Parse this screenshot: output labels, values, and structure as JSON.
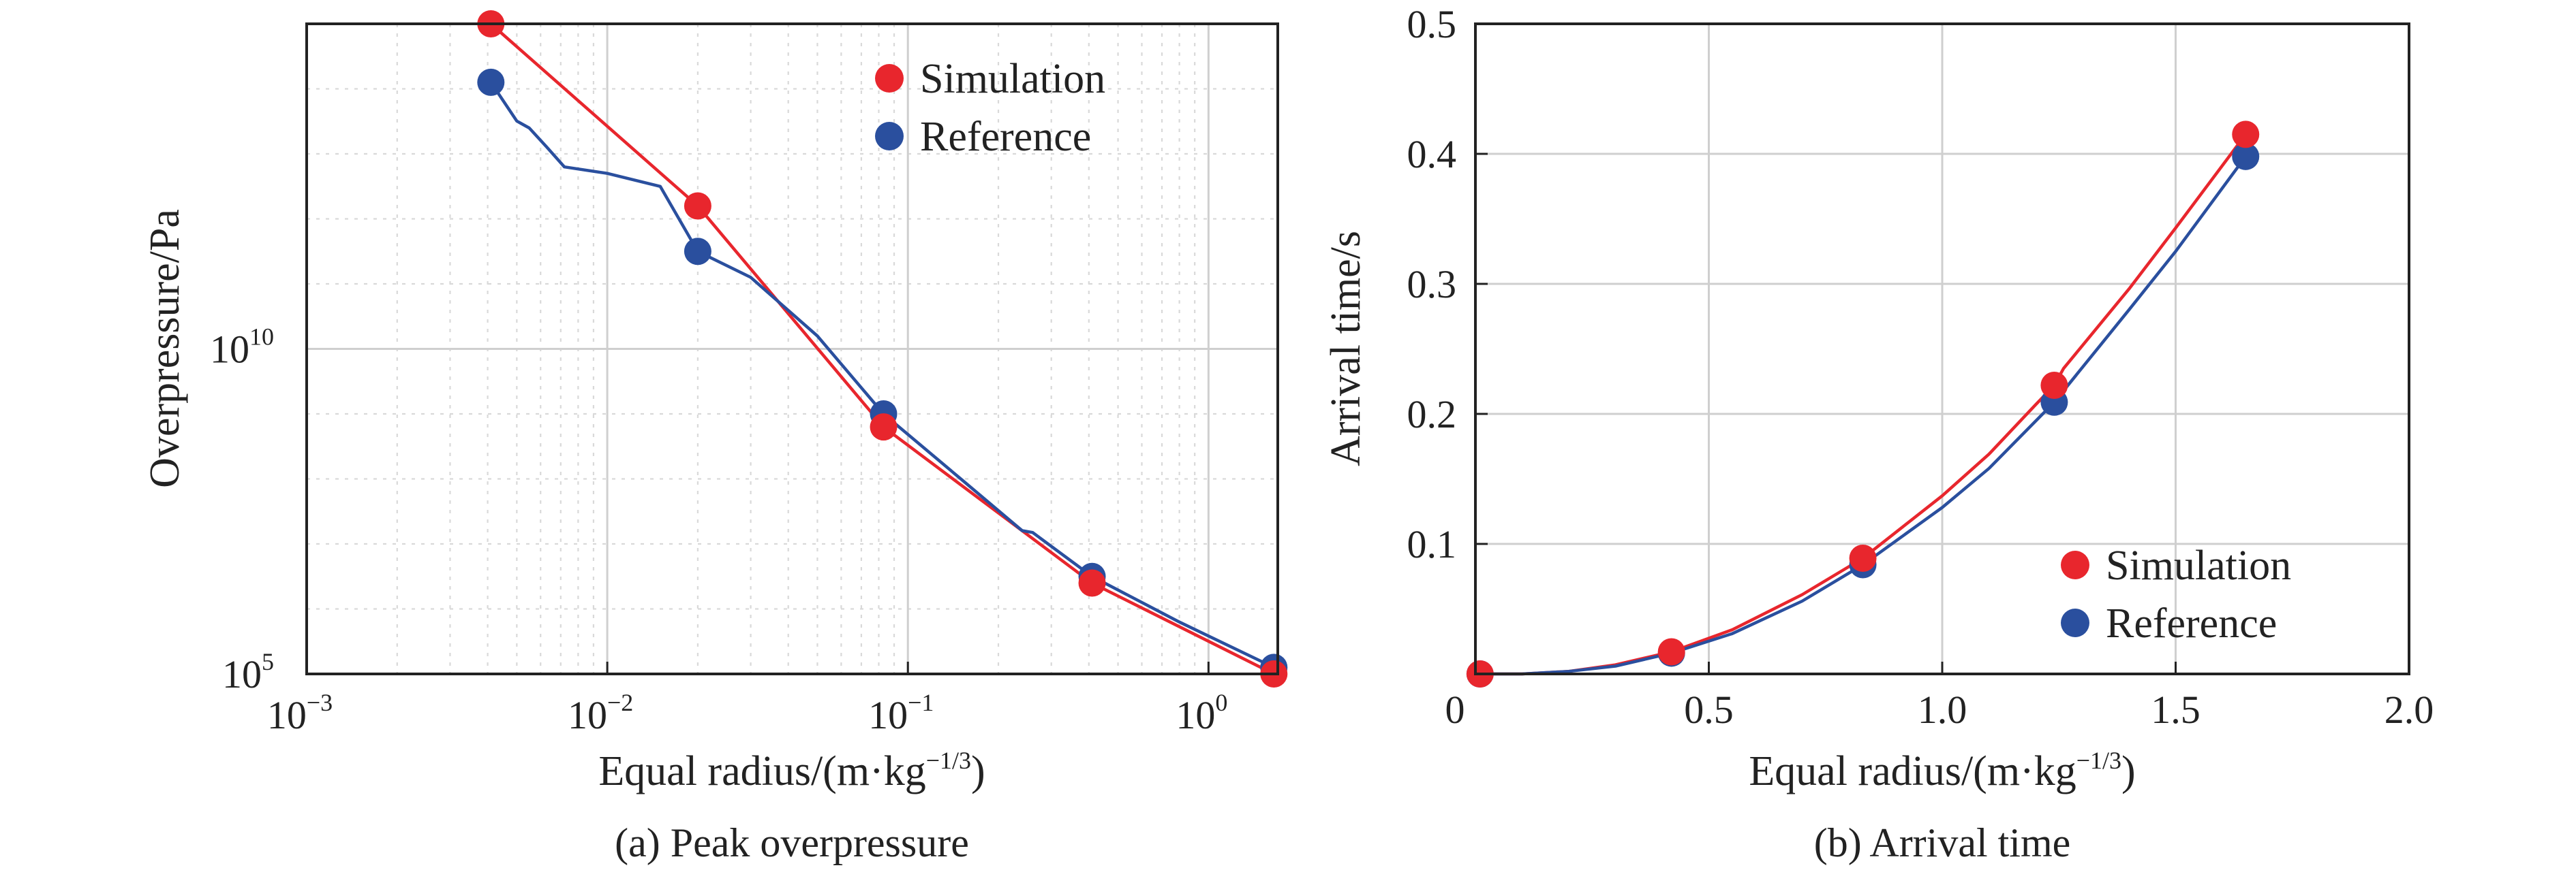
{
  "colors": {
    "simulation": "#e8262d",
    "reference": "#2a4f9e"
  },
  "chart_data": [
    {
      "id": "peak",
      "type": "line",
      "scale": "log-log",
      "title": "",
      "caption": "(a) Peak overpressure",
      "xlabel": "Equal radius/(m·kg",
      "xlabel_sup": "−1/3",
      "xlabel_end": ")",
      "ylabel": "Overpressure/Pa",
      "xlim": [
        0.001,
        1.7
      ],
      "ylim": [
        100000,
        1000000000000000.0
      ],
      "grid": true,
      "legend_position": "top-right",
      "xticks": [
        {
          "v": 0.001,
          "base": "10",
          "exp": "−3"
        },
        {
          "v": 0.01,
          "base": "10",
          "exp": "−2"
        },
        {
          "v": 0.1,
          "base": "10",
          "exp": "−1"
        },
        {
          "v": 1,
          "base": "10",
          "exp": "0"
        }
      ],
      "yticks": [
        {
          "v": 100000,
          "base": "10",
          "exp": "5"
        },
        {
          "v": 10000000000.0,
          "base": "10",
          "exp": "10"
        }
      ],
      "series": [
        {
          "name": "Simulation",
          "points": [
            [
              0.0041,
              1000000000000000.0
            ],
            [
              0.02,
              1580000000000.0
            ],
            [
              0.083,
              630000000.0
            ],
            [
              0.41,
              2500000.0
            ],
            [
              1.65,
              100000.0
            ]
          ],
          "curve": [
            [
              0.0041,
              1000000000000000.0
            ],
            [
              0.02,
              1580000000000.0
            ],
            [
              0.083,
              630000000.0
            ],
            [
              0.41,
              2500000.0
            ],
            [
              1.65,
              100000.0
            ]
          ]
        },
        {
          "name": "Reference",
          "points": [
            [
              0.0041,
              126000000000000.0
            ],
            [
              0.02,
              316000000000.0
            ],
            [
              0.083,
              1000000000.0
            ],
            [
              0.41,
              3160000.0
            ],
            [
              1.65,
              126000.0
            ]
          ],
          "curve": [
            [
              0.0041,
              126000000000000.0
            ],
            [
              0.005,
              32000000000000.0
            ],
            [
              0.0055,
              25000000000000.0
            ],
            [
              0.0063,
              12600000000000.0
            ],
            [
              0.0072,
              6300000000000.0
            ],
            [
              0.01,
              5000000000000.0
            ],
            [
              0.015,
              3160000000000.0
            ],
            [
              0.02,
              316000000000.0
            ],
            [
              0.03,
              126000000000.0
            ],
            [
              0.05,
              15800000000.0
            ],
            [
              0.083,
              1000000000.0
            ],
            [
              0.15,
              100000000.0
            ],
            [
              0.24,
              16000000.0
            ],
            [
              0.26,
              15000000.0
            ],
            [
              0.41,
              3160000.0
            ],
            [
              0.8,
              630000.0
            ],
            [
              1.65,
              126000.0
            ]
          ]
        }
      ]
    },
    {
      "id": "arrival",
      "type": "line",
      "scale": "linear",
      "title": "",
      "caption": "(b) Arrival time",
      "xlabel": "Equal radius/(m·kg",
      "xlabel_sup": "−1/3",
      "xlabel_end": ")",
      "ylabel": "Arrival time/s",
      "xlim": [
        0,
        2.0
      ],
      "ylim": [
        0,
        0.5
      ],
      "grid": true,
      "legend_position": "bottom-right",
      "xticks": [
        {
          "v": 0,
          "label": "0"
        },
        {
          "v": 0.5,
          "label": "0.5"
        },
        {
          "v": 1.0,
          "label": "1.0"
        },
        {
          "v": 1.5,
          "label": "1.5"
        },
        {
          "v": 2.0,
          "label": "2.0"
        }
      ],
      "yticks": [
        {
          "v": 0.1,
          "label": "0.1"
        },
        {
          "v": 0.2,
          "label": "0.2"
        },
        {
          "v": 0.3,
          "label": "0.3"
        },
        {
          "v": 0.4,
          "label": "0.4"
        },
        {
          "v": 0.5,
          "label": "0.5"
        }
      ],
      "series": [
        {
          "name": "Simulation",
          "points": [
            [
              0.01,
              0.0
            ],
            [
              0.42,
              0.017
            ],
            [
              0.83,
              0.089
            ],
            [
              1.24,
              0.222
            ],
            [
              1.65,
              0.415
            ]
          ],
          "curve": [
            [
              0.01,
              0.0
            ],
            [
              0.1,
              0.0
            ],
            [
              0.2,
              0.002
            ],
            [
              0.3,
              0.007
            ],
            [
              0.42,
              0.017
            ],
            [
              0.55,
              0.034
            ],
            [
              0.7,
              0.061
            ],
            [
              0.83,
              0.089
            ],
            [
              1.0,
              0.137
            ],
            [
              1.1,
              0.169
            ],
            [
              1.2,
              0.207
            ],
            [
              1.24,
              0.222
            ],
            [
              1.26,
              0.235
            ],
            [
              1.4,
              0.296
            ],
            [
              1.5,
              0.343
            ],
            [
              1.65,
              0.415
            ]
          ]
        },
        {
          "name": "Reference",
          "points": [
            [
              0.01,
              0.0
            ],
            [
              0.42,
              0.016
            ],
            [
              0.83,
              0.084
            ],
            [
              1.24,
              0.209
            ],
            [
              1.65,
              0.398
            ]
          ],
          "curve": [
            [
              0.01,
              0.0
            ],
            [
              0.1,
              0.0
            ],
            [
              0.2,
              0.002
            ],
            [
              0.3,
              0.006
            ],
            [
              0.42,
              0.016
            ],
            [
              0.55,
              0.031
            ],
            [
              0.7,
              0.056
            ],
            [
              0.83,
              0.084
            ],
            [
              1.0,
              0.128
            ],
            [
              1.1,
              0.158
            ],
            [
              1.24,
              0.209
            ],
            [
              1.4,
              0.28
            ],
            [
              1.5,
              0.325
            ],
            [
              1.65,
              0.398
            ]
          ]
        }
      ]
    }
  ]
}
